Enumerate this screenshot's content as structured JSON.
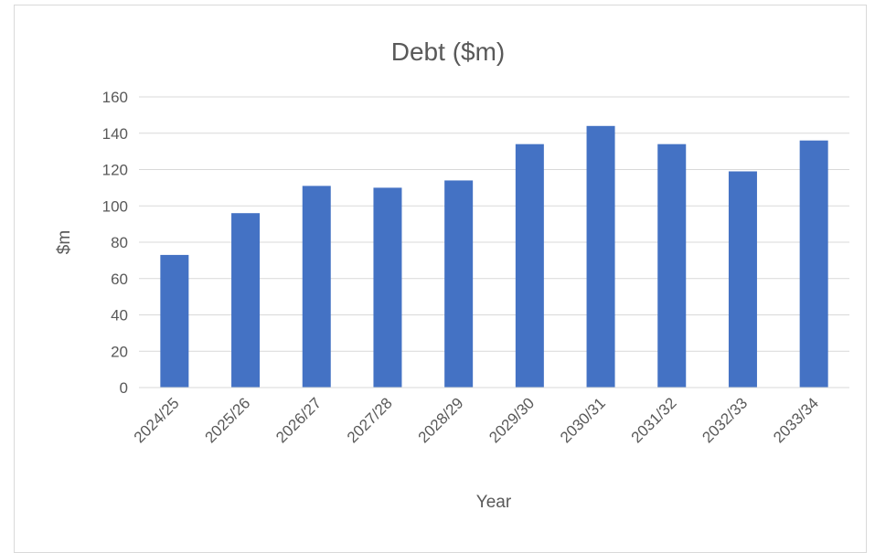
{
  "chart_data": {
    "type": "bar",
    "title": "Debt ($m)",
    "xlabel": "Year",
    "ylabel": "$m",
    "categories": [
      "2024/25",
      "2025/26",
      "2026/27",
      "2027/28",
      "2028/29",
      "2029/30",
      "2030/31",
      "2031/32",
      "2032/33",
      "2033/34"
    ],
    "values": [
      73,
      96,
      111,
      110,
      114,
      134,
      144,
      134,
      119,
      136
    ],
    "ylim": [
      0,
      160
    ],
    "yticks": [
      0,
      20,
      40,
      60,
      80,
      100,
      120,
      140,
      160
    ],
    "grid": true,
    "legend": "none",
    "bar_color": "#4472C4"
  }
}
